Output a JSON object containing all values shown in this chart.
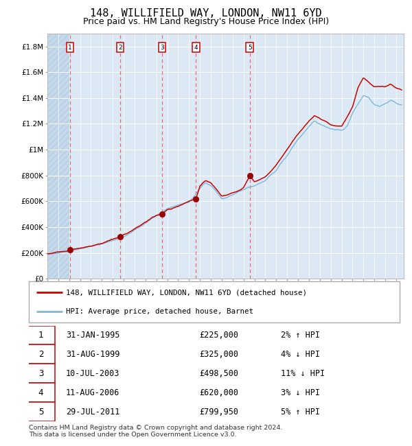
{
  "title": "148, WILLIFIELD WAY, LONDON, NW11 6YD",
  "subtitle": "Price paid vs. HM Land Registry's House Price Index (HPI)",
  "footer": "Contains HM Land Registry data © Crown copyright and database right 2024.\nThis data is licensed under the Open Government Licence v3.0.",
  "legend_line1": "148, WILLIFIELD WAY, LONDON, NW11 6YD (detached house)",
  "legend_line2": "HPI: Average price, detached house, Barnet",
  "sales": [
    {
      "num": 1,
      "date": "31-JAN-1995",
      "price": 225000,
      "pct": "2%",
      "dir": "↑",
      "year": 1995.08
    },
    {
      "num": 2,
      "date": "31-AUG-1999",
      "price": 325000,
      "pct": "4%",
      "dir": "↓",
      "year": 1999.67
    },
    {
      "num": 3,
      "date": "10-JUL-2003",
      "price": 498500,
      "pct": "11%",
      "dir": "↓",
      "year": 2003.52
    },
    {
      "num": 4,
      "date": "11-AUG-2006",
      "price": 620000,
      "pct": "3%",
      "dir": "↓",
      "year": 2006.62
    },
    {
      "num": 5,
      "date": "29-JUL-2011",
      "price": 799950,
      "pct": "5%",
      "dir": "↑",
      "year": 2011.58
    }
  ],
  "ylim": [
    0,
    1900000
  ],
  "yticks": [
    0,
    200000,
    400000,
    600000,
    800000,
    1000000,
    1200000,
    1400000,
    1600000,
    1800000
  ],
  "ylabel_map": {
    "0": "£0",
    "200000": "£200K",
    "400000": "£400K",
    "600000": "£600K",
    "800000": "£800K",
    "1000000": "£1M",
    "1200000": "£1.2M",
    "1400000": "£1.4M",
    "1600000": "£1.6M",
    "1800000": "£1.8M"
  },
  "hpi_anchors_x": [
    1993.0,
    1994.0,
    1995.0,
    1996.0,
    1997.0,
    1998.0,
    1999.0,
    2000.0,
    2001.0,
    2002.0,
    2003.0,
    2004.0,
    2005.0,
    2006.0,
    2007.0,
    2007.5,
    2008.0,
    2008.5,
    2009.0,
    2009.5,
    2010.0,
    2010.5,
    2011.0,
    2011.5,
    2012.0,
    2013.0,
    2014.0,
    2015.0,
    2016.0,
    2017.0,
    2017.5,
    2018.0,
    2018.5,
    2019.0,
    2020.0,
    2020.5,
    2021.0,
    2021.5,
    2022.0,
    2022.5,
    2023.0,
    2023.5,
    2024.0,
    2024.5,
    2025.0,
    2025.5
  ],
  "hpi_anchors_y": [
    190000,
    200000,
    215000,
    230000,
    250000,
    270000,
    295000,
    325000,
    375000,
    430000,
    490000,
    540000,
    570000,
    590000,
    700000,
    740000,
    720000,
    680000,
    620000,
    630000,
    650000,
    670000,
    690000,
    710000,
    720000,
    760000,
    840000,
    960000,
    1080000,
    1180000,
    1220000,
    1200000,
    1180000,
    1160000,
    1150000,
    1180000,
    1280000,
    1350000,
    1420000,
    1400000,
    1350000,
    1330000,
    1360000,
    1380000,
    1360000,
    1350000
  ],
  "price_anchors_x": [
    1993.0,
    1995.0,
    1995.08,
    1996.0,
    1997.0,
    1998.0,
    1999.0,
    1999.67,
    2000.0,
    2001.0,
    2002.0,
    2003.0,
    2003.52,
    2004.0,
    2005.0,
    2006.0,
    2006.62,
    2007.0,
    2007.5,
    2008.0,
    2008.5,
    2009.0,
    2009.5,
    2010.0,
    2010.5,
    2011.0,
    2011.58,
    2012.0,
    2013.0,
    2014.0,
    2015.0,
    2016.0,
    2017.0,
    2017.5,
    2018.0,
    2019.0,
    2020.0,
    2021.0,
    2021.5,
    2022.0,
    2022.5,
    2023.0,
    2024.0,
    2024.5,
    2025.0,
    2025.5
  ],
  "price_anchors_y": [
    195000,
    220000,
    225000,
    235000,
    255000,
    275000,
    305000,
    325000,
    340000,
    385000,
    440000,
    490000,
    498500,
    530000,
    560000,
    600000,
    620000,
    720000,
    760000,
    740000,
    700000,
    640000,
    650000,
    665000,
    685000,
    705000,
    799950,
    750000,
    790000,
    880000,
    1000000,
    1120000,
    1220000,
    1260000,
    1240000,
    1190000,
    1180000,
    1330000,
    1480000,
    1560000,
    1520000,
    1490000,
    1490000,
    1510000,
    1480000,
    1460000
  ],
  "hpi_color": "#7ab8d9",
  "price_color": "#cc0000",
  "sale_dot_color": "#990000",
  "vline_color_red": "#ee5555",
  "bg_chart": "#dce9f5",
  "bg_hatch_left": "#c8d8ec",
  "grid_color": "#ffffff",
  "title_fontsize": 11,
  "subtitle_fontsize": 9,
  "tick_fontsize": 7.5
}
